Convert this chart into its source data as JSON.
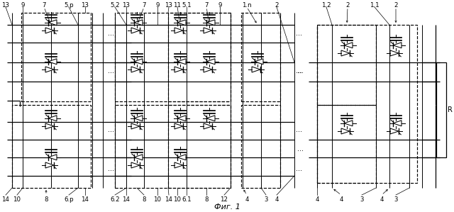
{
  "title": "Фиг. 1",
  "fig_width": 6.4,
  "fig_height": 2.99,
  "bg_color": "#ffffff",
  "line_color": "#000000",
  "R_label": "R",
  "labels_top_left": [
    [
      "13",
      8
    ],
    [
      "9",
      32
    ],
    [
      "7",
      62
    ],
    [
      "5.p",
      97
    ],
    [
      "13",
      120
    ]
  ],
  "labels_bot_left": [
    [
      "14",
      8
    ],
    [
      "10",
      24
    ],
    [
      "8",
      65
    ],
    [
      "6.p",
      97
    ],
    [
      "14",
      120
    ]
  ],
  "labels_top_mid": [
    [
      "5.2",
      162
    ],
    [
      "13",
      178
    ],
    [
      "7",
      203
    ],
    [
      "9",
      222
    ],
    [
      "13",
      238
    ],
    [
      "11",
      250
    ],
    [
      "5.1",
      263
    ],
    [
      "7",
      291
    ],
    [
      "9",
      310
    ],
    [
      "1.n",
      348
    ],
    [
      "2",
      390
    ]
  ],
  "labels_bot_mid": [
    [
      "6.2",
      162
    ],
    [
      "14",
      178
    ],
    [
      "8",
      203
    ],
    [
      "10",
      222
    ],
    [
      "14",
      238
    ],
    [
      "10",
      250
    ],
    [
      "6.1",
      263
    ],
    [
      "8",
      291
    ],
    [
      "12",
      316
    ],
    [
      "4",
      348
    ],
    [
      "3",
      375
    ],
    [
      "4",
      390
    ]
  ],
  "labels_top_right": [
    [
      "1.2",
      460
    ],
    [
      "2",
      490
    ],
    [
      "1.1",
      528
    ],
    [
      "2",
      558
    ]
  ],
  "labels_bot_right": [
    [
      "4",
      447
    ],
    [
      "4",
      481
    ],
    [
      "3",
      510
    ],
    [
      "4",
      538
    ],
    [
      "3",
      558
    ]
  ]
}
